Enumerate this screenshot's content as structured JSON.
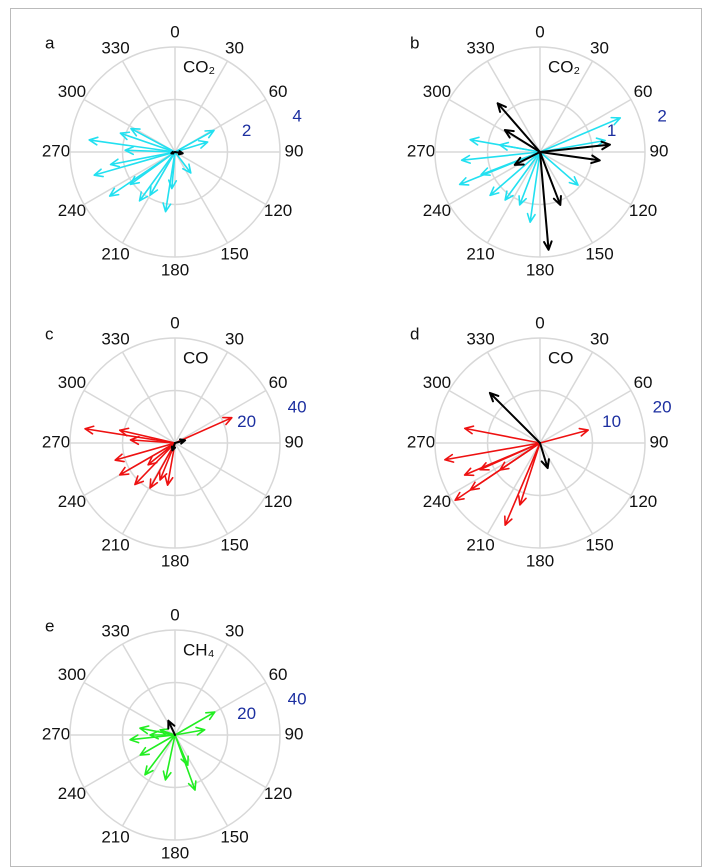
{
  "chart_data": [
    {
      "type": "polar",
      "label": "a",
      "title": "CO₂",
      "rlim": [
        0,
        4
      ],
      "rticks": [
        2,
        4
      ],
      "thetaticks": [
        0,
        30,
        60,
        90,
        120,
        150,
        180,
        210,
        240,
        270,
        300,
        330
      ],
      "series": [
        {
          "color": "#22e0f0",
          "angles": [
            278,
            289,
            298,
            61,
            73,
            143,
            189,
            210,
            236,
            254,
            259,
            234,
            216,
            185,
            272
          ],
          "values": [
            3.3,
            2.2,
            1.9,
            1.7,
            1.3,
            1.0,
            2.3,
            1.9,
            3.0,
            3.2,
            2.5,
            2.1,
            2.3,
            1.4,
            1.9
          ]
        },
        {
          "color": "#000000",
          "angles": [
            100,
            250
          ],
          "values": [
            0.3,
            0.15
          ]
        }
      ]
    },
    {
      "type": "polar",
      "label": "b",
      "title": "CO₂",
      "rlim": [
        0,
        2
      ],
      "rticks": [
        1,
        2
      ],
      "thetaticks": [
        0,
        30,
        60,
        90,
        120,
        150,
        180,
        210,
        240,
        270,
        300,
        330
      ],
      "series": [
        {
          "color": "#22e0f0",
          "angles": [
            67,
            80,
            264,
            248,
            249,
            229,
            216,
            188,
            201,
            131,
            280,
            280
          ],
          "values": [
            1.66,
            1.26,
            1.5,
            1.65,
            1.2,
            1.26,
            1.13,
            1.35,
            1.08,
            0.96,
            0.78,
            1.35
          ]
        },
        {
          "color": "#000000",
          "angles": [
            319,
            302,
            84,
            98,
            175,
            159,
            243
          ],
          "values": [
            1.23,
            0.79,
            1.34,
            1.15,
            1.87,
            1.08,
            0.54
          ]
        }
      ]
    },
    {
      "type": "polar",
      "label": "c",
      "title": "CO",
      "rlim": [
        0,
        40
      ],
      "rticks": [
        20,
        40
      ],
      "thetaticks": [
        0,
        30,
        60,
        90,
        120,
        150,
        180,
        210,
        240,
        270,
        300,
        330
      ],
      "series": [
        {
          "color": "#ee1111",
          "angles": [
            66,
            279,
            283,
            274,
            254,
            240,
            224,
            209,
            202,
            190,
            231
          ],
          "values": [
            23.7,
            34.7,
            21.6,
            17,
            23.7,
            24.3,
            22,
            19.6,
            15.2,
            16.3,
            13.2
          ]
        },
        {
          "color": "#000000",
          "angles": [
            75,
            200
          ],
          "values": [
            4,
            3
          ]
        }
      ]
    },
    {
      "type": "polar",
      "label": "d",
      "title": "CO",
      "rlim": [
        0,
        20
      ],
      "rticks": [
        10,
        20
      ],
      "thetaticks": [
        0,
        30,
        60,
        90,
        120,
        150,
        180,
        210,
        240,
        270,
        300,
        330
      ],
      "series": [
        {
          "color": "#ee1111",
          "angles": [
            75,
            281,
            260,
            236,
            236,
            247,
            246,
            203,
            198,
            236
          ],
          "values": [
            9.5,
            14.6,
            18.4,
            19.5,
            16,
            15.6,
            12.5,
            17,
            12.4,
            9.2
          ]
        },
        {
          "color": "#000000",
          "angles": [
            315,
            163
          ],
          "values": [
            13.5,
            5
          ]
        }
      ]
    },
    {
      "type": "polar",
      "label": "e",
      "title": "CH₄",
      "rlim": [
        0,
        40
      ],
      "rticks": [
        20,
        40
      ],
      "thetaticks": [
        0,
        30,
        60,
        90,
        120,
        150,
        180,
        210,
        240,
        270,
        300,
        330
      ],
      "series": [
        {
          "color": "#22ee22",
          "angles": [
            60,
            80,
            281,
            264,
            240,
            217,
            192,
            160,
            157,
            289,
            270
          ],
          "values": [
            17.5,
            11.5,
            13.6,
            17.2,
            15.3,
            19,
            17.5,
            22.3,
            12.5,
            6,
            9.5
          ]
        },
        {
          "color": "#000000",
          "angles": [
            335
          ],
          "values": [
            6
          ]
        }
      ]
    }
  ]
}
